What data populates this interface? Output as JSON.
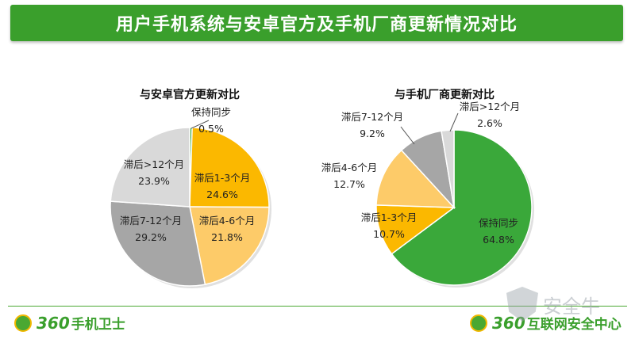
{
  "page_title": "用户手机系统与安卓官方及手机厂商更新情况对比",
  "footer": {
    "left_logo_number": "360",
    "left_logo_text": "手机卫士",
    "right_logo_number": "360",
    "right_logo_text": "互联网安全中心",
    "watermark_text": "安全牛"
  },
  "chart_data": [
    {
      "type": "pie",
      "title": "与安卓官方更新对比",
      "slices": [
        {
          "label": "保持同步",
          "value": 0.5,
          "display": "0.5%",
          "color": "#3aa83a"
        },
        {
          "label": "滞后1-3个月",
          "value": 24.6,
          "display": "24.6%",
          "color": "#fbb800"
        },
        {
          "label": "滞后4-6个月",
          "value": 21.8,
          "display": "21.8%",
          "color": "#fdcb69"
        },
        {
          "label": "滞后7-12个月",
          "value": 29.2,
          "display": "29.2%",
          "color": "#a6a6a6"
        },
        {
          "label": "滞后>12个月",
          "value": 23.9,
          "display": "23.9%",
          "color": "#d9d9d9"
        }
      ]
    },
    {
      "type": "pie",
      "title": "与手机厂商更新对比",
      "slices": [
        {
          "label": "保持同步",
          "value": 64.8,
          "display": "64.8%",
          "color": "#3aa83a"
        },
        {
          "label": "滞后1-3个月",
          "value": 10.7,
          "display": "10.7%",
          "color": "#fbb800"
        },
        {
          "label": "滞后4-6个月",
          "value": 12.7,
          "display": "12.7%",
          "color": "#fdcb69"
        },
        {
          "label": "滞后7-12个月",
          "value": 9.2,
          "display": "9.2%",
          "color": "#a6a6a6"
        },
        {
          "label": "滞后>12个月",
          "value": 2.6,
          "display": "2.6%",
          "color": "#d9d9d9"
        }
      ]
    }
  ]
}
